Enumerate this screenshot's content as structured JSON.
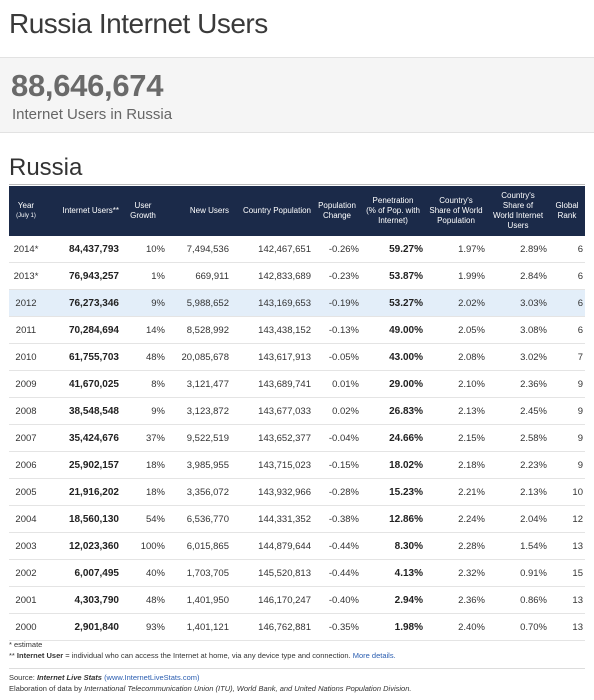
{
  "page": {
    "title": "Russia Internet Users"
  },
  "stat": {
    "value": "88,646,674",
    "label": "Internet Users in Russia"
  },
  "section": {
    "title": "Russia"
  },
  "table": {
    "headers": {
      "year": "Year",
      "year_sub": "(July 1)",
      "users": "Internet Users**",
      "growth_1": "User",
      "growth_2": "Growth",
      "new_users": "New Users",
      "country_pop": "Country Population",
      "pop_change_1": "Population",
      "pop_change_2": "Change",
      "pen_1": "Penetration",
      "pen_2": "(% of Pop. with",
      "pen_3": "Internet)",
      "share_1": "Country's",
      "share_2": "Share of World",
      "share_3": "Population",
      "wiu_1": "Country's",
      "wiu_2": "Share of",
      "wiu_3": "World Internet",
      "wiu_4": "Users",
      "rank_1": "Global",
      "rank_2": "Rank"
    },
    "rows": [
      {
        "year": "2014*",
        "users": "84,437,793",
        "growth": "10%",
        "new_users": "7,494,536",
        "population": "142,467,651",
        "pop_change": "-0.26%",
        "penetration": "59.27%",
        "pop_share": "1.97%",
        "users_share": "2.89%",
        "rank": "6"
      },
      {
        "year": "2013*",
        "users": "76,943,257",
        "growth": "1%",
        "new_users": "669,911",
        "population": "142,833,689",
        "pop_change": "-0.23%",
        "penetration": "53.87%",
        "pop_share": "1.99%",
        "users_share": "2.84%",
        "rank": "6"
      },
      {
        "year": "2012",
        "users": "76,273,346",
        "growth": "9%",
        "new_users": "5,988,652",
        "population": "143,169,653",
        "pop_change": "-0.19%",
        "penetration": "53.27%",
        "pop_share": "2.02%",
        "users_share": "3.03%",
        "rank": "6"
      },
      {
        "year": "2011",
        "users": "70,284,694",
        "growth": "14%",
        "new_users": "8,528,992",
        "population": "143,438,152",
        "pop_change": "-0.13%",
        "penetration": "49.00%",
        "pop_share": "2.05%",
        "users_share": "3.08%",
        "rank": "6"
      },
      {
        "year": "2010",
        "users": "61,755,703",
        "growth": "48%",
        "new_users": "20,085,678",
        "population": "143,617,913",
        "pop_change": "-0.05%",
        "penetration": "43.00%",
        "pop_share": "2.08%",
        "users_share": "3.02%",
        "rank": "7"
      },
      {
        "year": "2009",
        "users": "41,670,025",
        "growth": "8%",
        "new_users": "3,121,477",
        "population": "143,689,741",
        "pop_change": "0.01%",
        "penetration": "29.00%",
        "pop_share": "2.10%",
        "users_share": "2.36%",
        "rank": "9"
      },
      {
        "year": "2008",
        "users": "38,548,548",
        "growth": "9%",
        "new_users": "3,123,872",
        "population": "143,677,033",
        "pop_change": "0.02%",
        "penetration": "26.83%",
        "pop_share": "2.13%",
        "users_share": "2.45%",
        "rank": "9"
      },
      {
        "year": "2007",
        "users": "35,424,676",
        "growth": "37%",
        "new_users": "9,522,519",
        "population": "143,652,377",
        "pop_change": "-0.04%",
        "penetration": "24.66%",
        "pop_share": "2.15%",
        "users_share": "2.58%",
        "rank": "9"
      },
      {
        "year": "2006",
        "users": "25,902,157",
        "growth": "18%",
        "new_users": "3,985,955",
        "population": "143,715,023",
        "pop_change": "-0.15%",
        "penetration": "18.02%",
        "pop_share": "2.18%",
        "users_share": "2.23%",
        "rank": "9"
      },
      {
        "year": "2005",
        "users": "21,916,202",
        "growth": "18%",
        "new_users": "3,356,072",
        "population": "143,932,966",
        "pop_change": "-0.28%",
        "penetration": "15.23%",
        "pop_share": "2.21%",
        "users_share": "2.13%",
        "rank": "10"
      },
      {
        "year": "2004",
        "users": "18,560,130",
        "growth": "54%",
        "new_users": "6,536,770",
        "population": "144,331,352",
        "pop_change": "-0.38%",
        "penetration": "12.86%",
        "pop_share": "2.24%",
        "users_share": "2.04%",
        "rank": "12"
      },
      {
        "year": "2003",
        "users": "12,023,360",
        "growth": "100%",
        "new_users": "6,015,865",
        "population": "144,879,644",
        "pop_change": "-0.44%",
        "penetration": "8.30%",
        "pop_share": "2.28%",
        "users_share": "1.54%",
        "rank": "13"
      },
      {
        "year": "2002",
        "users": "6,007,495",
        "growth": "40%",
        "new_users": "1,703,705",
        "population": "145,520,813",
        "pop_change": "-0.44%",
        "penetration": "4.13%",
        "pop_share": "2.32%",
        "users_share": "0.91%",
        "rank": "15"
      },
      {
        "year": "2001",
        "users": "4,303,790",
        "growth": "48%",
        "new_users": "1,401,950",
        "population": "146,170,247",
        "pop_change": "-0.40%",
        "penetration": "2.94%",
        "pop_share": "2.36%",
        "users_share": "0.86%",
        "rank": "13"
      },
      {
        "year": "2000",
        "users": "2,901,840",
        "growth": "93%",
        "new_users": "1,401,121",
        "population": "146,762,881",
        "pop_change": "-0.35%",
        "penetration": "1.98%",
        "pop_share": "2.40%",
        "users_share": "0.70%",
        "rank": "13"
      }
    ],
    "highlighted_row": 2
  },
  "notes": {
    "estimate": "* estimate",
    "user_def_prefix": "** ",
    "user_def_bold": "Internet User",
    "user_def_text": " = individual who can access the Internet at home, via any device type and connection. ",
    "more_details": "More details."
  },
  "sources": {
    "source_prefix": "Source: ",
    "source_name": "Internet Live Stats",
    "source_url": "(www.InternetLiveStats.com)",
    "elaboration_prefix": "Elaboration of data by ",
    "elaboration_orgs": "International Telecommunication Union (ITU), World Bank, and United Nations Population Division."
  },
  "colors": {
    "header_bg": "#1b2a49",
    "highlight_row": "#e3eef9",
    "link": "#2a5db0"
  }
}
